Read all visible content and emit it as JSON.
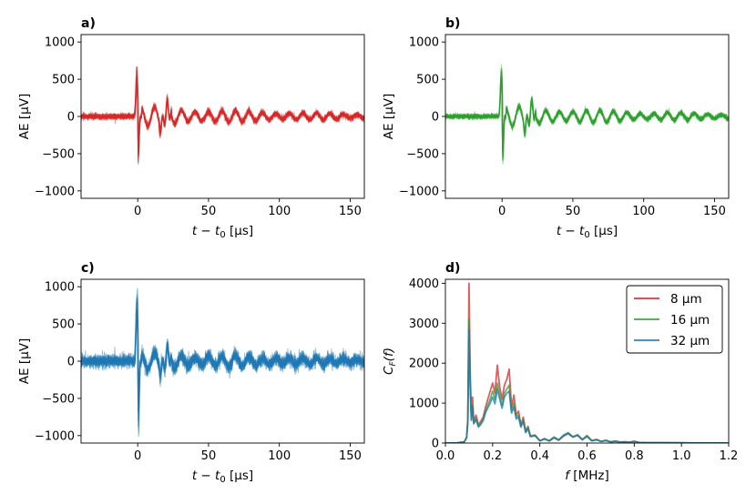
{
  "chart_data": [
    {
      "panel": "a)",
      "type": "line",
      "description_hidden": true,
      "color": "#d62728",
      "xlabel": "t − t",
      "xlabel_sub": "0",
      "xlabel_unit": " [µs]",
      "ylabel": "AE [µV]",
      "xlim": [
        -40,
        160
      ],
      "ylim": [
        -1100,
        1100
      ],
      "xticks": [
        0,
        50,
        100,
        150
      ],
      "yticks": [
        -1000,
        -500,
        0,
        500,
        1000
      ],
      "ytick_labels": [
        "−1000",
        "−500",
        "0",
        "500",
        "1000"
      ],
      "peak_pos": 690,
      "peak_neg": -650,
      "noise": 25,
      "n_traces": 14
    },
    {
      "panel": "b)",
      "type": "line",
      "color": "#2ca02c",
      "xlabel": "t − t",
      "xlabel_sub": "0",
      "xlabel_unit": " [µs]",
      "ylabel": "AE [µV]",
      "xlim": [
        -40,
        160
      ],
      "ylim": [
        -1100,
        1100
      ],
      "xticks": [
        0,
        50,
        100,
        150
      ],
      "yticks": [
        -1000,
        -500,
        0,
        500,
        1000
      ],
      "ytick_labels": [
        "−1000",
        "−500",
        "0",
        "500",
        "1000"
      ],
      "peak_pos": 700,
      "peak_neg": -650,
      "noise": 20,
      "n_traces": 14
    },
    {
      "panel": "c)",
      "type": "line",
      "color": "#1f77b4",
      "xlabel": "t − t",
      "xlabel_sub": "0",
      "xlabel_unit": " [µs]",
      "ylabel": "AE [µV]",
      "xlim": [
        -40,
        160
      ],
      "ylim": [
        -1100,
        1100
      ],
      "xticks": [
        0,
        50,
        100,
        150
      ],
      "yticks": [
        -1000,
        -500,
        0,
        500,
        1000
      ],
      "ytick_labels": [
        "−1000",
        "−500",
        "0",
        "500",
        "1000"
      ],
      "peak_pos": 1040,
      "peak_neg": -1020,
      "noise": 55,
      "n_traces": 14
    },
    {
      "panel": "d)",
      "type": "line",
      "xlabel": "f",
      "xlabel_unit": " [MHz]",
      "ylabel": "C",
      "ylabel_sub": "F",
      "ylabel_arg": "(f)",
      "xlim": [
        0,
        1.2
      ],
      "ylim": [
        0,
        4100
      ],
      "xticks": [
        0,
        0.2,
        0.4,
        0.6,
        0.8,
        1.0,
        1.2
      ],
      "xtick_labels": [
        "0.0",
        "0.2",
        "0.4",
        "0.6",
        "0.8",
        "1.0",
        "1.2"
      ],
      "yticks": [
        0,
        1000,
        2000,
        3000,
        4000
      ],
      "ytick_labels": [
        "0",
        "1000",
        "2000",
        "3000",
        "4000"
      ],
      "legend_position": "top-right",
      "series": [
        {
          "name": "8 µm",
          "color": "#d62728",
          "x": [
            0.0,
            0.05,
            0.08,
            0.09,
            0.095,
            0.1,
            0.105,
            0.11,
            0.115,
            0.12,
            0.13,
            0.14,
            0.15,
            0.16,
            0.17,
            0.18,
            0.19,
            0.2,
            0.21,
            0.22,
            0.23,
            0.24,
            0.25,
            0.26,
            0.27,
            0.28,
            0.29,
            0.3,
            0.31,
            0.32,
            0.33,
            0.34,
            0.35,
            0.36,
            0.38,
            0.4,
            0.42,
            0.44,
            0.46,
            0.48,
            0.5,
            0.52,
            0.54,
            0.56,
            0.58,
            0.6,
            0.62,
            0.64,
            0.66,
            0.68,
            0.7,
            0.72,
            0.74,
            0.76,
            0.78,
            0.8,
            0.82,
            0.85,
            0.9,
            1.0,
            1.1,
            1.2
          ],
          "y": [
            0,
            5,
            30,
            150,
            600,
            4000,
            1800,
            700,
            1150,
            550,
            700,
            450,
            550,
            650,
            900,
            1100,
            1300,
            1500,
            1250,
            1950,
            1400,
            1100,
            1450,
            1600,
            1850,
            900,
            1200,
            700,
            800,
            450,
            650,
            300,
            420,
            180,
            200,
            60,
            110,
            50,
            130,
            70,
            170,
            250,
            150,
            200,
            80,
            190,
            60,
            90,
            40,
            70,
            30,
            50,
            25,
            30,
            20,
            45,
            15,
            10,
            8,
            5,
            3,
            2
          ]
        },
        {
          "name": "16 µm",
          "color": "#2ca02c",
          "x": [
            0.0,
            0.05,
            0.08,
            0.09,
            0.095,
            0.1,
            0.105,
            0.11,
            0.115,
            0.12,
            0.13,
            0.14,
            0.15,
            0.16,
            0.17,
            0.18,
            0.19,
            0.2,
            0.21,
            0.22,
            0.23,
            0.24,
            0.25,
            0.26,
            0.27,
            0.28,
            0.29,
            0.3,
            0.31,
            0.32,
            0.33,
            0.34,
            0.35,
            0.36,
            0.38,
            0.4,
            0.42,
            0.44,
            0.46,
            0.48,
            0.5,
            0.52,
            0.54,
            0.56,
            0.58,
            0.6,
            0.62,
            0.64,
            0.66,
            0.68,
            0.7,
            0.72,
            0.74,
            0.76,
            0.78,
            0.8,
            0.82,
            0.85,
            0.9,
            1.0,
            1.1,
            1.2
          ],
          "y": [
            0,
            5,
            30,
            140,
            550,
            3100,
            1500,
            600,
            950,
            500,
            620,
            420,
            500,
            600,
            820,
            950,
            1100,
            1300,
            1100,
            1500,
            1200,
            950,
            1250,
            1350,
            1450,
            800,
            1000,
            650,
            700,
            420,
            580,
            280,
            380,
            170,
            190,
            60,
            110,
            60,
            150,
            80,
            200,
            260,
            160,
            210,
            90,
            180,
            60,
            85,
            40,
            65,
            30,
            45,
            25,
            30,
            20,
            40,
            15,
            10,
            8,
            5,
            3,
            2
          ]
        },
        {
          "name": "32 µm",
          "color": "#1f77b4",
          "x": [
            0.0,
            0.05,
            0.08,
            0.09,
            0.095,
            0.1,
            0.105,
            0.11,
            0.115,
            0.12,
            0.13,
            0.14,
            0.15,
            0.16,
            0.17,
            0.18,
            0.19,
            0.2,
            0.21,
            0.22,
            0.23,
            0.24,
            0.25,
            0.26,
            0.27,
            0.28,
            0.29,
            0.3,
            0.31,
            0.32,
            0.33,
            0.34,
            0.35,
            0.36,
            0.38,
            0.4,
            0.42,
            0.44,
            0.46,
            0.48,
            0.5,
            0.52,
            0.54,
            0.56,
            0.58,
            0.6,
            0.62,
            0.64,
            0.66,
            0.68,
            0.7,
            0.72,
            0.74,
            0.76,
            0.78,
            0.8,
            0.82,
            0.85,
            0.9,
            1.0,
            1.1,
            1.2
          ],
          "y": [
            0,
            5,
            30,
            130,
            500,
            2850,
            1400,
            560,
            900,
            480,
            580,
            400,
            470,
            560,
            760,
            880,
            1000,
            1150,
            980,
            1350,
            1100,
            870,
            1150,
            1250,
            1300,
            750,
            900,
            600,
            650,
            400,
            540,
            260,
            350,
            160,
            180,
            55,
            100,
            55,
            140,
            75,
            180,
            230,
            150,
            190,
            85,
            160,
            55,
            80,
            38,
            60,
            28,
            42,
            22,
            28,
            18,
            38,
            14,
            10,
            8,
            5,
            3,
            2
          ]
        }
      ]
    }
  ]
}
